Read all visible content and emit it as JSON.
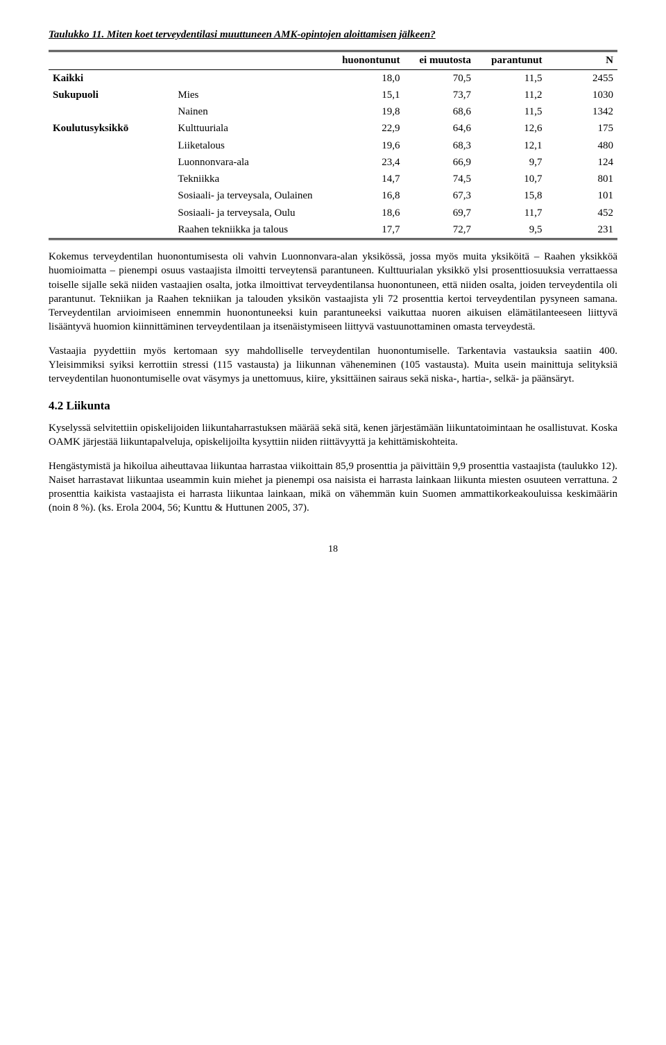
{
  "table": {
    "title": "Taulukko 11. Miten koet terveydentilasi muuttuneen AMK-opintojen aloittamisen jälkeen?",
    "headers": [
      "huonontunut",
      "ei muutosta",
      "parantunut",
      "N"
    ],
    "rows": [
      {
        "l1": "Kaikki",
        "l2": "",
        "c": [
          "18,0",
          "70,5",
          "11,5",
          "2455"
        ]
      },
      {
        "l1": "Sukupuoli",
        "l2": "Mies",
        "c": [
          "15,1",
          "73,7",
          "11,2",
          "1030"
        ]
      },
      {
        "l1": "",
        "l2": "Nainen",
        "c": [
          "19,8",
          "68,6",
          "11,5",
          "1342"
        ]
      },
      {
        "l1": "Koulutusyksikkö",
        "l2": "Kulttuuriala",
        "c": [
          "22,9",
          "64,6",
          "12,6",
          "175"
        ]
      },
      {
        "l1": "",
        "l2": "Liiketalous",
        "c": [
          "19,6",
          "68,3",
          "12,1",
          "480"
        ]
      },
      {
        "l1": "",
        "l2": "Luonnonvara-ala",
        "c": [
          "23,4",
          "66,9",
          "9,7",
          "124"
        ]
      },
      {
        "l1": "",
        "l2": "Tekniikka",
        "c": [
          "14,7",
          "74,5",
          "10,7",
          "801"
        ]
      },
      {
        "l1": "",
        "l2": "Sosiaali- ja terveysala, Oulainen",
        "c": [
          "16,8",
          "67,3",
          "15,8",
          "101"
        ]
      },
      {
        "l1": "",
        "l2": "Sosiaali- ja terveysala, Oulu",
        "c": [
          "18,6",
          "69,7",
          "11,7",
          "452"
        ]
      },
      {
        "l1": "",
        "l2": "Raahen tekniikka ja talous",
        "c": [
          "17,7",
          "72,7",
          "9,5",
          "231"
        ]
      }
    ]
  },
  "para1": "Kokemus terveydentilan huonontumisesta oli vahvin Luonnonvara-alan yksikössä, jossa myös muita yksiköitä – Raahen yksikköä huomioimatta – pienempi osuus vastaajista ilmoitti terveytensä parantuneen. Kulttuurialan yksikkö ylsi prosenttiosuuksia verrattaessa toiselle sijalle sekä niiden vastaajien osalta, jotka ilmoittivat terveydentilansa huonontuneen, että niiden osalta, joiden terveydentila oli parantunut. Tekniikan ja Raahen tekniikan ja talouden yksikön vastaajista yli 72 prosenttia kertoi terveydentilan pysyneen samana. Terveydentilan arvioimiseen ennemmin huonontuneeksi kuin parantuneeksi vaikuttaa nuoren aikuisen elämätilanteeseen liittyvä lisääntyvä huomion kiinnittäminen terveydentilaan ja itsenäistymiseen liittyvä vastuunottaminen omasta terveydestä.",
  "para2": "Vastaajia pyydettiin myös kertomaan syy mahdolliselle terveydentilan huonontumiselle. Tarkentavia vastauksia saatiin 400. Yleisimmiksi syiksi kerrottiin stressi (115 vastausta) ja liikunnan väheneminen (105 vastausta). Muita usein mainittuja selityksiä terveydentilan huonontumiselle ovat väsymys ja unettomuus, kiire, yksittäinen sairaus sekä niska-, hartia-, selkä- ja päänsäryt.",
  "heading": "4.2 Liikunta",
  "para3": "Kyselyssä selvitettiin opiskelijoiden liikuntaharrastuksen määrää sekä sitä, kenen järjestämään liikuntatoimintaan he osallistuvat. Koska OAMK järjestää liikuntapalveluja, opiskelijoilta kysyttiin niiden riittävyyttä ja kehittämiskohteita.",
  "para4": "Hengästymistä ja hikoilua aiheuttavaa liikuntaa harrastaa viikoittain 85,9 prosenttia ja päivittäin 9,9 prosenttia vastaajista (taulukko 12). Naiset harrastavat liikuntaa useammin kuin miehet ja pienempi osa naisista ei harrasta lainkaan liikunta miesten osuuteen verrattuna. 2 prosenttia kaikista vastaajista ei harrasta liikuntaa lainkaan, mikä on vähemmän kuin Suomen ammattikorkeakouluissa keskimäärin (noin 8 %). (ks. Erola 2004, 56; Kunttu & Huttunen 2005, 37).",
  "pageNumber": "18"
}
